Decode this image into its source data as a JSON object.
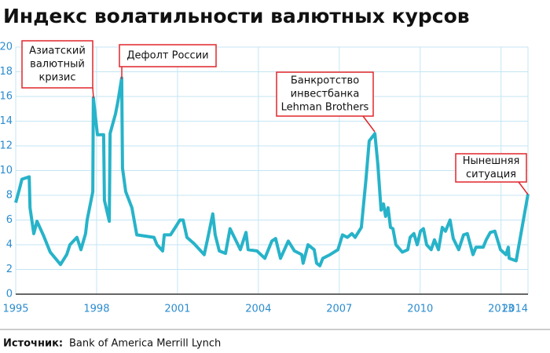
{
  "chart_data": {
    "type": "line",
    "title": "Индекс волатильности валютных курсов",
    "source_label": "Источник:",
    "source": "Bank of America Merrill Lynch",
    "color": "#27b3c9",
    "grid": true,
    "xlim": [
      1995,
      2014
    ],
    "xticks": [
      1995,
      1998,
      2001,
      2004,
      2007,
      2010,
      2013,
      2014
    ],
    "ylim": [
      0,
      20
    ],
    "yticks": [
      0,
      2,
      4,
      6,
      8,
      10,
      12,
      14,
      16,
      18,
      20
    ],
    "x": [
      1995.0,
      1995.15,
      1995.23,
      1995.5,
      1995.53,
      1995.67,
      1995.79,
      1996.02,
      1996.28,
      1996.66,
      1996.89,
      1997.01,
      1997.27,
      1997.42,
      1997.59,
      1997.65,
      1997.86,
      1997.88,
      1998.03,
      1998.26,
      1998.29,
      1998.47,
      1998.5,
      1998.7,
      1998.79,
      1998.93,
      1998.96,
      1999.08,
      1999.31,
      1999.49,
      2000.13,
      2000.24,
      2000.45,
      2000.51,
      2000.74,
      2000.89,
      2001.09,
      2001.21,
      2001.35,
      2001.61,
      2001.99,
      2002.11,
      2002.31,
      2002.4,
      2002.55,
      2002.78,
      2002.95,
      2003.22,
      2003.33,
      2003.54,
      2003.62,
      2003.95,
      2004.24,
      2004.5,
      2004.64,
      2004.82,
      2005.11,
      2005.34,
      2005.61,
      2005.66,
      2005.84,
      2006.07,
      2006.16,
      2006.28,
      2006.39,
      2006.66,
      2006.95,
      2007.12,
      2007.3,
      2007.47,
      2007.59,
      2007.82,
      2007.99,
      2008.11,
      2008.32,
      2008.43,
      2008.55,
      2008.64,
      2008.72,
      2008.81,
      2008.9,
      2008.99,
      2009.1,
      2009.34,
      2009.54,
      2009.63,
      2009.77,
      2009.89,
      2010.01,
      2010.12,
      2010.24,
      2010.41,
      2010.53,
      2010.68,
      2010.82,
      2010.94,
      2011.11,
      2011.23,
      2011.43,
      2011.61,
      2011.75,
      2011.96,
      2012.07,
      2012.34,
      2012.45,
      2012.6,
      2012.77,
      2012.98,
      2013.18,
      2013.27,
      2013.3,
      2013.56,
      2014.0
    ],
    "values": [
      7.4,
      8.6,
      9.3,
      9.5,
      7.0,
      4.9,
      5.9,
      4.8,
      3.4,
      2.4,
      3.2,
      4.0,
      4.6,
      3.6,
      4.9,
      6.0,
      8.3,
      15.9,
      12.9,
      12.9,
      7.6,
      5.9,
      13.0,
      14.6,
      15.6,
      17.5,
      10.2,
      8.3,
      7.0,
      4.8,
      4.6,
      4.0,
      3.5,
      4.8,
      4.8,
      5.3,
      6.0,
      6.0,
      4.6,
      4.1,
      3.2,
      4.4,
      6.5,
      4.8,
      3.5,
      3.3,
      5.3,
      4.1,
      3.6,
      5.0,
      3.6,
      3.5,
      2.9,
      4.3,
      4.5,
      2.9,
      4.3,
      3.5,
      3.2,
      2.5,
      4.0,
      3.6,
      2.5,
      2.3,
      2.9,
      3.2,
      3.6,
      4.8,
      4.6,
      4.9,
      4.6,
      5.4,
      9.3,
      12.4,
      13.0,
      10.5,
      6.8,
      7.3,
      6.3,
      7.0,
      5.4,
      5.3,
      4.0,
      3.4,
      3.6,
      4.6,
      4.9,
      4.0,
      5.1,
      5.3,
      4.0,
      3.6,
      4.4,
      3.6,
      5.4,
      5.1,
      6.0,
      4.5,
      3.6,
      4.8,
      4.9,
      3.2,
      3.8,
      3.8,
      4.4,
      5.0,
      5.1,
      3.6,
      3.2,
      3.8,
      2.9,
      2.7,
      8.1
    ],
    "annotations": [
      {
        "lines": [
          "Азиатский",
          "валютный",
          "кризис"
        ]
      },
      {
        "lines": [
          "Дефолт России"
        ]
      },
      {
        "lines": [
          "Банкротство",
          "инвестбанка",
          "Lehman Brothers"
        ]
      },
      {
        "lines": [
          "Нынешняя",
          "ситуация"
        ]
      }
    ]
  }
}
